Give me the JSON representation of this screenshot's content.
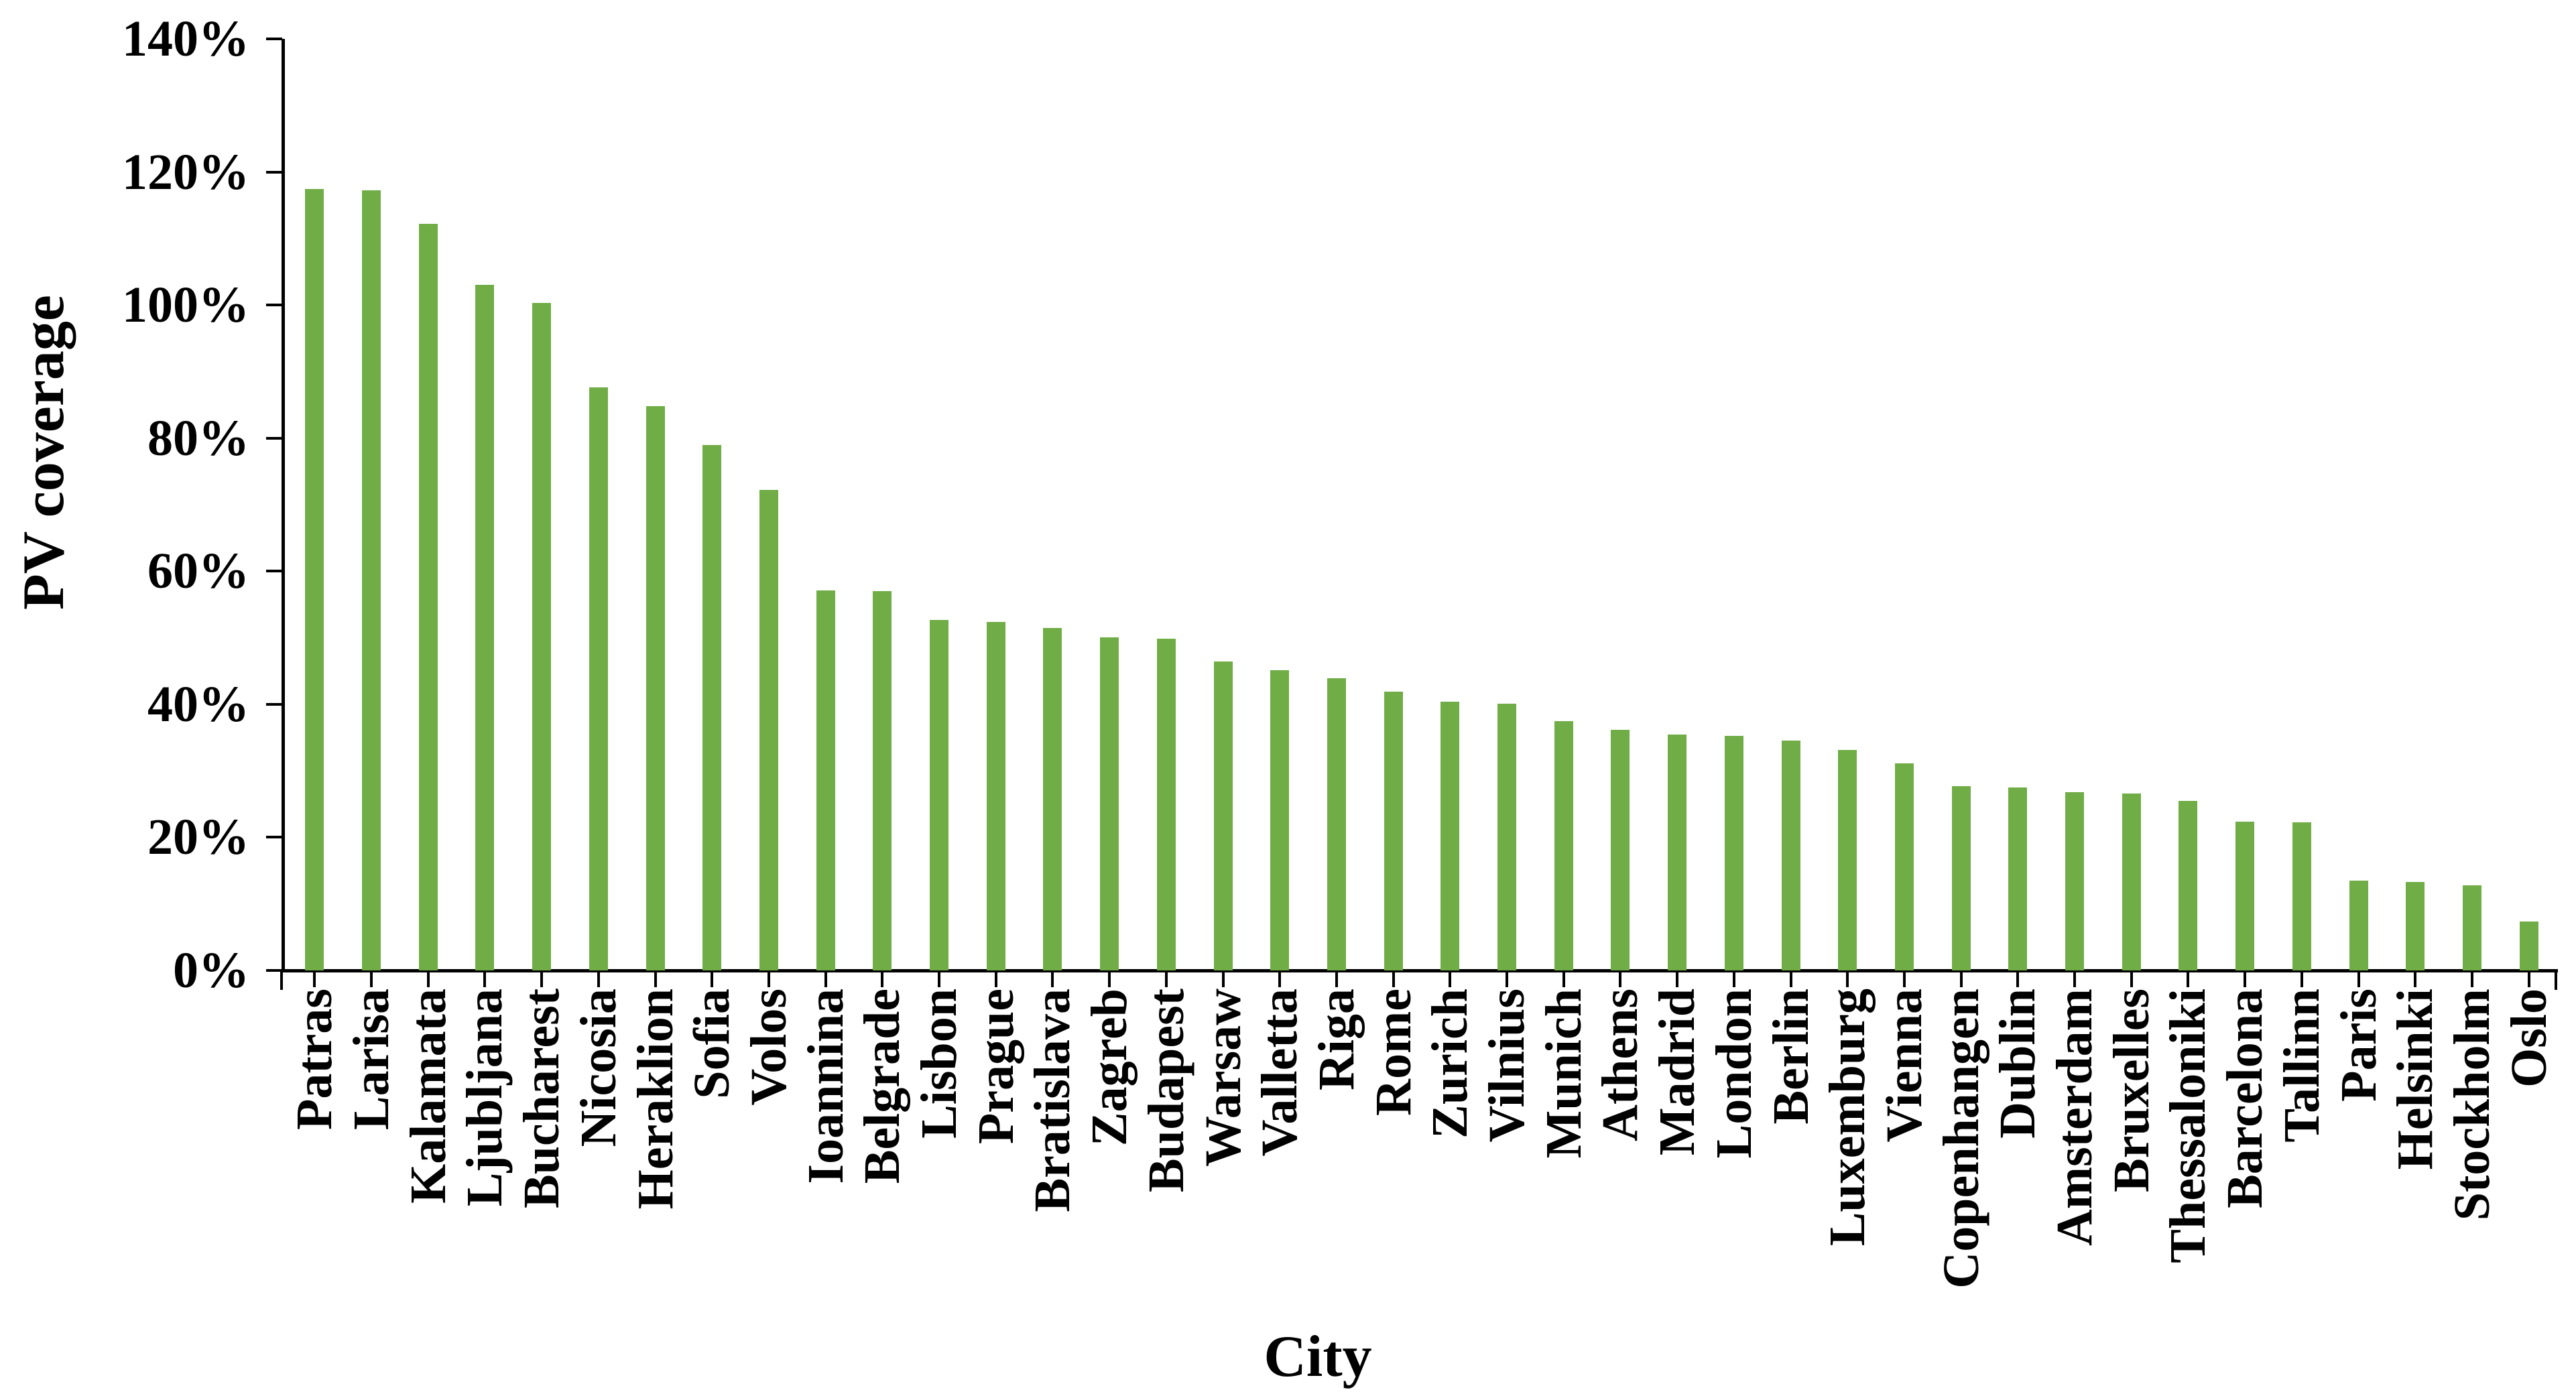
{
  "chart_data": {
    "type": "bar",
    "title": "",
    "xlabel": "City",
    "ylabel": "PV coverage",
    "categories": [
      "Patras",
      "Larisa",
      "Kalamata",
      "Ljubljana",
      "Bucharest",
      "Nicosia",
      "Heraklion",
      "Sofia",
      "Volos",
      "Ioannina",
      "Belgrade",
      "Lisbon",
      "Prague",
      "Bratislava",
      "Zagreb",
      "Budapest",
      "Warsaw",
      "Valletta",
      "Riga",
      "Rome",
      "Zurich",
      "Vilnius",
      "Munich",
      "Athens",
      "Madrid",
      "London",
      "Berlin",
      "Luxemburg",
      "Vienna",
      "Copenhangen",
      "Dublin",
      "Amsterdam",
      "Bruxelles",
      "Thessaloniki",
      "Barcelona",
      "Tallinn",
      "Paris",
      "Helsinki",
      "Stockholm",
      "Oslo"
    ],
    "values": [
      117.4,
      117.2,
      112.2,
      103.0,
      100.3,
      87.6,
      84.8,
      79.0,
      72.2,
      57.1,
      57.0,
      52.7,
      52.4,
      51.5,
      50.1,
      49.9,
      46.4,
      45.1,
      43.9,
      41.9,
      40.4,
      40.1,
      37.5,
      36.2,
      35.5,
      35.3,
      34.5,
      33.1,
      31.1,
      27.7,
      27.5,
      26.8,
      26.6,
      25.5,
      22.4,
      22.3,
      13.5,
      13.3,
      12.8,
      7.4
    ],
    "ylim": [
      0,
      140
    ],
    "yticks": [
      0,
      20,
      40,
      60,
      80,
      100,
      120,
      140
    ],
    "ytick_labels": [
      "0%",
      "20%",
      "40%",
      "60%",
      "80%",
      "100%",
      "120%",
      "140%"
    ],
    "bar_color": "#70AD47",
    "axis_color": "#000000",
    "grid": false,
    "legend": "none",
    "x_labels_rotation_deg": -90,
    "sorted": "descending"
  }
}
